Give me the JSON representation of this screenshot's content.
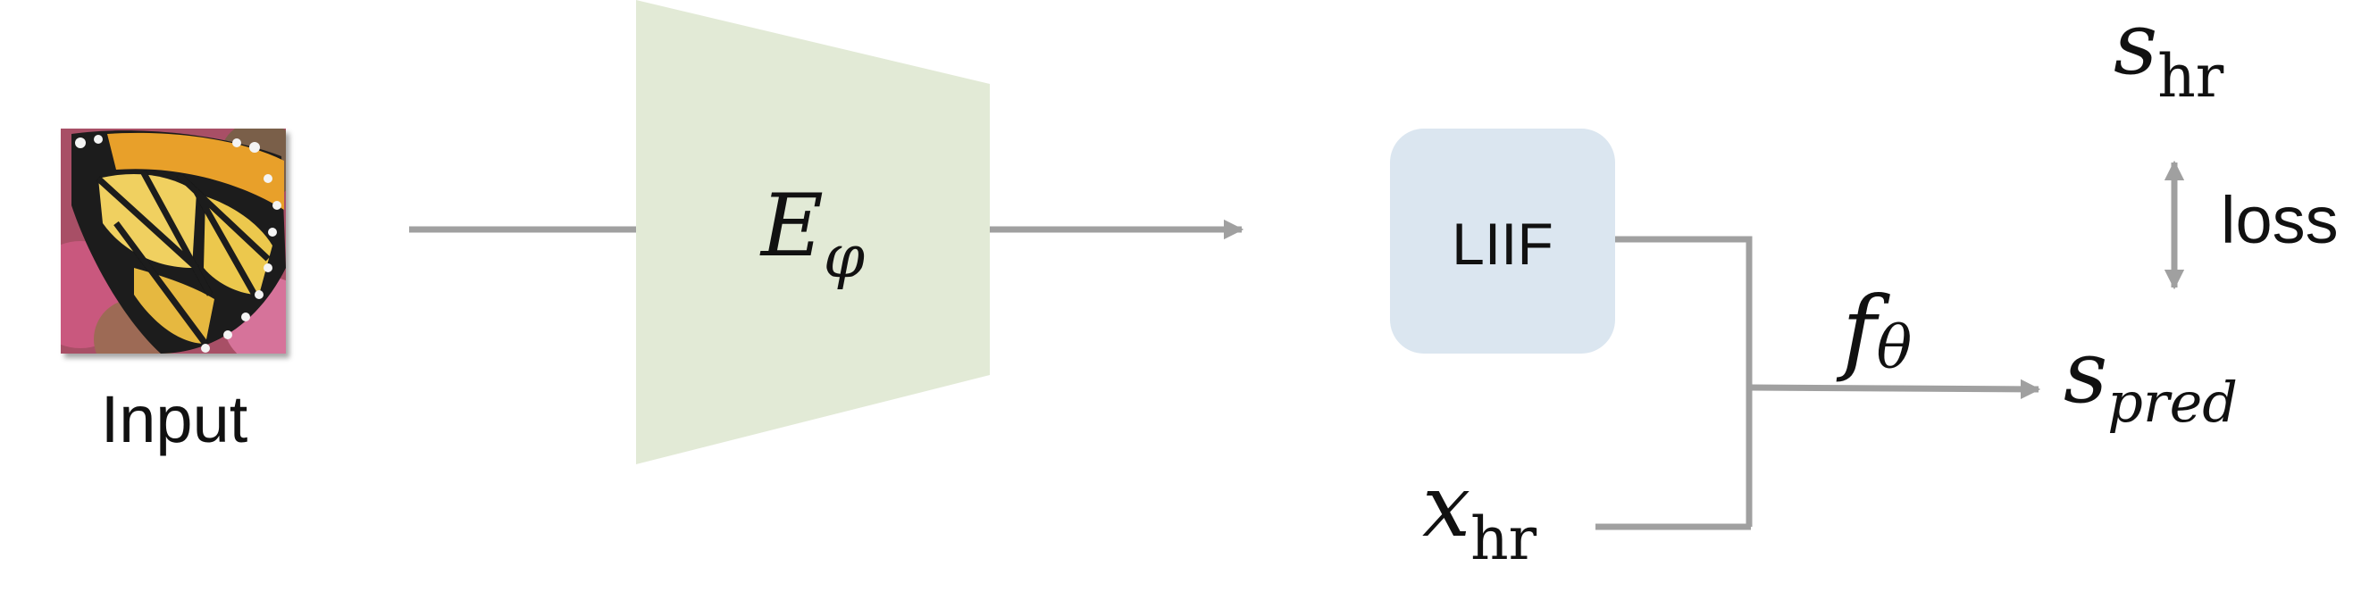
{
  "input": {
    "label": "Input"
  },
  "encoder": {
    "symbol": "E",
    "subscript": "φ"
  },
  "liif_block": {
    "label": "LIIF"
  },
  "function": {
    "symbol": "f",
    "subscript": "θ"
  },
  "coord": {
    "symbol": "x",
    "subscript": "hr"
  },
  "target": {
    "symbol": "s",
    "subscript": "hr"
  },
  "prediction": {
    "symbol": "s",
    "subscript": "pred"
  },
  "loss": {
    "label": "loss"
  },
  "colors": {
    "encoder_fill": "#e2ead6",
    "liif_fill": "#dbe6f0",
    "connector": "#a0a0a0",
    "butterfly_orange": "#e8a02a",
    "butterfly_black": "#1a1a1a",
    "flower_pink": "#c44a72"
  },
  "icons": {
    "input_image": "butterfly-image",
    "arrow": "arrow-right-icon",
    "double_arrow": "double-arrow-icon"
  }
}
